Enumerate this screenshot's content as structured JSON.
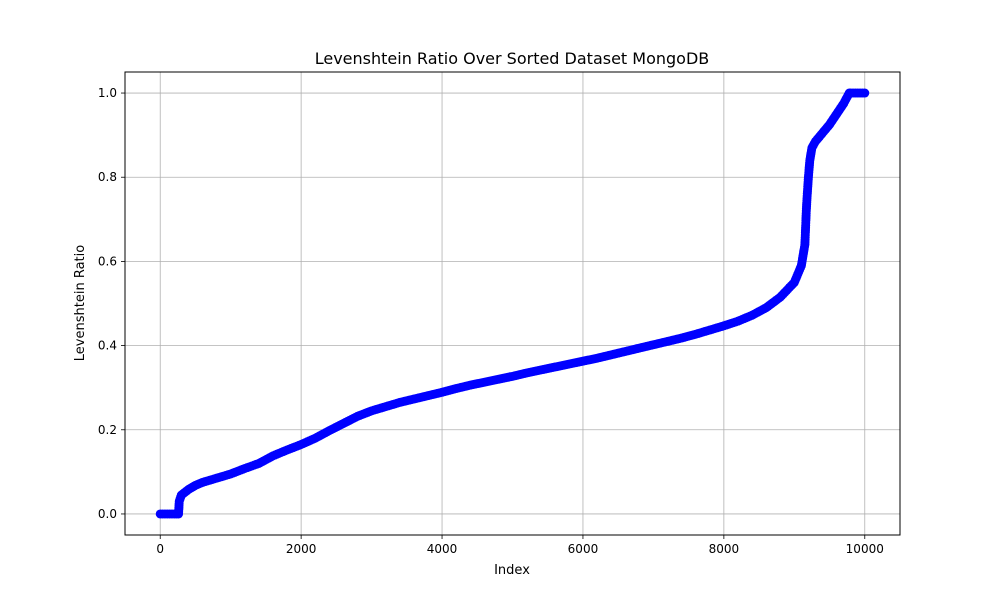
{
  "chart_data": {
    "type": "scatter",
    "title": "Levenshtein Ratio Over Sorted Dataset MongoDB",
    "xlabel": "Index",
    "ylabel": "Levenshtein Ratio",
    "xlim": [
      -500,
      10500
    ],
    "ylim": [
      -0.05,
      1.05
    ],
    "xticks": [
      0,
      2000,
      4000,
      6000,
      8000,
      10000
    ],
    "yticks": [
      0.0,
      0.2,
      0.4,
      0.6,
      0.8,
      1.0
    ],
    "xtick_labels": [
      "0",
      "2000",
      "4000",
      "6000",
      "8000",
      "10000"
    ],
    "ytick_labels": [
      "0.0",
      "0.2",
      "0.4",
      "0.6",
      "0.8",
      "1.0"
    ],
    "grid": true,
    "marker_color": "#0000ff",
    "series": [
      {
        "x": [
          0,
          100,
          200,
          260,
          270,
          300,
          400,
          500,
          600,
          800,
          1000,
          1200,
          1400,
          1600,
          1800,
          2000,
          2200,
          2400,
          2600,
          2800,
          3000,
          3200,
          3400,
          3600,
          3800,
          4000,
          4200,
          4400,
          4600,
          4800,
          5000,
          5200,
          5400,
          5600,
          5800,
          6000,
          6200,
          6400,
          6600,
          6800,
          7000,
          7200,
          7400,
          7600,
          7800,
          8000,
          8200,
          8400,
          8600,
          8800,
          9000,
          9100,
          9150,
          9170,
          9180,
          9200,
          9220,
          9250,
          9300,
          9400,
          9500,
          9600,
          9700,
          9780,
          9800,
          9900,
          10000
        ],
        "y": [
          0.0,
          0.0,
          0.0,
          0.0,
          0.03,
          0.045,
          0.058,
          0.068,
          0.075,
          0.085,
          0.095,
          0.108,
          0.12,
          0.138,
          0.152,
          0.165,
          0.18,
          0.198,
          0.215,
          0.232,
          0.245,
          0.255,
          0.265,
          0.273,
          0.281,
          0.289,
          0.298,
          0.306,
          0.313,
          0.32,
          0.327,
          0.335,
          0.342,
          0.349,
          0.356,
          0.363,
          0.37,
          0.378,
          0.386,
          0.394,
          0.402,
          0.41,
          0.418,
          0.427,
          0.437,
          0.447,
          0.458,
          0.472,
          0.49,
          0.515,
          0.55,
          0.59,
          0.64,
          0.72,
          0.75,
          0.8,
          0.84,
          0.87,
          0.885,
          0.905,
          0.925,
          0.95,
          0.975,
          1.0,
          1.0,
          1.0,
          1.0
        ]
      }
    ]
  }
}
